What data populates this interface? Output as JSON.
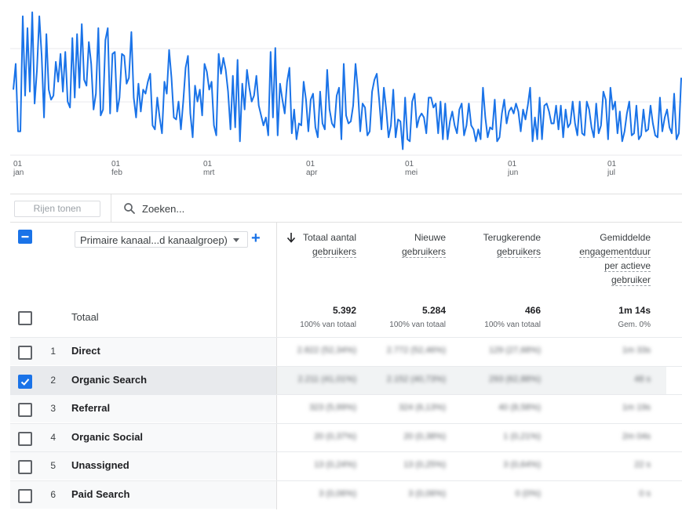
{
  "chart_data": {
    "type": "line",
    "color": "#1a73e8",
    "x_ticks": [
      {
        "day": "01",
        "month": "jan"
      },
      {
        "day": "01",
        "month": "feb"
      },
      {
        "day": "01",
        "month": "mrt"
      },
      {
        "day": "01",
        "month": "apr"
      },
      {
        "day": "01",
        "month": "mei"
      },
      {
        "day": "01",
        "month": "jun"
      },
      {
        "day": "01",
        "month": "jul"
      }
    ],
    "values": [
      58,
      71,
      37,
      37,
      95,
      55,
      89,
      57,
      97,
      51,
      68,
      95,
      75,
      44,
      86,
      58,
      53,
      55,
      72,
      62,
      76,
      57,
      77,
      52,
      49,
      84,
      54,
      86,
      59,
      91,
      63,
      60,
      82,
      71,
      48,
      56,
      89,
      45,
      48,
      83,
      89,
      46,
      76,
      77,
      47,
      54,
      76,
      75,
      61,
      64,
      87,
      54,
      44,
      61,
      47,
      58,
      56,
      62,
      66,
      40,
      38,
      54,
      44,
      36,
      62,
      56,
      78,
      64,
      44,
      43,
      52,
      38,
      52,
      69,
      75,
      46,
      34,
      60,
      52,
      58,
      45,
      71,
      67,
      58,
      62,
      40,
      35,
      76,
      66,
      74,
      68,
      57,
      38,
      65,
      39,
      73,
      32,
      61,
      48,
      68,
      59,
      52,
      55,
      65,
      50,
      45,
      40,
      44,
      35,
      77,
      44,
      79,
      35,
      61,
      53,
      46,
      62,
      69,
      36,
      48,
      33,
      41,
      40,
      62,
      53,
      37,
      53,
      56,
      39,
      34,
      57,
      41,
      38,
      68,
      48,
      41,
      39,
      55,
      59,
      33,
      71,
      45,
      41,
      42,
      50,
      71,
      58,
      37,
      51,
      49,
      35,
      37,
      57,
      63,
      66,
      53,
      38,
      59,
      48,
      34,
      40,
      58,
      34,
      43,
      42,
      28,
      54,
      33,
      32,
      52,
      56,
      39,
      44,
      46,
      44,
      36,
      54,
      54,
      49,
      51,
      36,
      52,
      33,
      51,
      33,
      42,
      47,
      40,
      36,
      48,
      51,
      35,
      40,
      51,
      40,
      38,
      32,
      38,
      33,
      59,
      44,
      34,
      39,
      38,
      53,
      32,
      34,
      46,
      53,
      41,
      47,
      49,
      46,
      51,
      47,
      37,
      48,
      43,
      50,
      59,
      32,
      44,
      33,
      54,
      33,
      50,
      51,
      47,
      41,
      41,
      50,
      38,
      50,
      34,
      48,
      39,
      41,
      52,
      41,
      35,
      52,
      36,
      35,
      52,
      48,
      39,
      34,
      51,
      36,
      40,
      57,
      53,
      33,
      59,
      48,
      52,
      36,
      47,
      32,
      37,
      46,
      52,
      35,
      36,
      50,
      33,
      35,
      48,
      37,
      38,
      50,
      41,
      35,
      34,
      54,
      37,
      44,
      48,
      39,
      36,
      56,
      33,
      36,
      64
    ]
  },
  "toolbar": {
    "rows_button": "Rijen tonen",
    "search_placeholder": "Zoeken..."
  },
  "table": {
    "dimension_select": "Primaire kanaal...d kanaalgroep)",
    "headers": [
      {
        "line1": "Totaal aantal",
        "line2": "gebruikers"
      },
      {
        "line1": "Nieuwe",
        "line2": "gebruikers"
      },
      {
        "line1": "Terugkerende",
        "line2": "gebruikers"
      },
      {
        "line1": "Gemiddelde",
        "line2": "engagementduur",
        "line3": "per actieve",
        "line4": "gebruiker"
      }
    ],
    "totals": {
      "label": "Totaal",
      "values": [
        "5.392",
        "5.284",
        "466",
        "1m 14s"
      ],
      "subs": [
        "100% van totaal",
        "100% van totaal",
        "100% van totaal",
        "Gem. 0%"
      ]
    },
    "rows": [
      {
        "num": "1",
        "name": "Direct",
        "checked": false,
        "values": [
          "2.822 (52,34%)",
          "2.772 (52,46%)",
          "129 (27,68%)",
          "1m 33s"
        ]
      },
      {
        "num": "2",
        "name": "Organic Search",
        "checked": true,
        "values": [
          "2.211 (41,01%)",
          "2.152 (40,73%)",
          "293 (62,88%)",
          "48 s"
        ]
      },
      {
        "num": "3",
        "name": "Referral",
        "checked": false,
        "values": [
          "323 (5,99%)",
          "324 (6,13%)",
          "40 (8,58%)",
          "1m 19s"
        ]
      },
      {
        "num": "4",
        "name": "Organic Social",
        "checked": false,
        "values": [
          "20 (0,37%)",
          "20 (0,38%)",
          "1 (0,21%)",
          "2m 04s"
        ]
      },
      {
        "num": "5",
        "name": "Unassigned",
        "checked": false,
        "values": [
          "13 (0,24%)",
          "13 (0,25%)",
          "3 (0,64%)",
          "22 s"
        ]
      },
      {
        "num": "6",
        "name": "Paid Search",
        "checked": false,
        "values": [
          "3 (0,06%)",
          "3 (0,06%)",
          "0 (0%)",
          "0 s"
        ]
      }
    ]
  }
}
